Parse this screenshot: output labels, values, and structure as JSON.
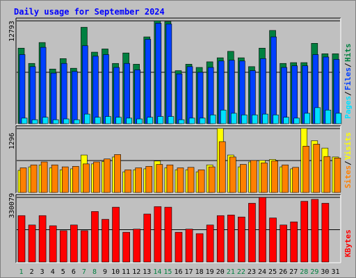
{
  "chart_title": "Daily usage for September 2024",
  "chart_data": [
    {
      "type": "bar",
      "panel": "hits-files-pages",
      "title": "Daily usage for September 2024",
      "categories": [
        "1",
        "2",
        "3",
        "4",
        "5",
        "6",
        "7",
        "8",
        "9",
        "10",
        "11",
        "12",
        "13",
        "14",
        "15",
        "16",
        "17",
        "18",
        "19",
        "20",
        "21",
        "22",
        "23",
        "24",
        "25",
        "26",
        "27",
        "28",
        "29",
        "30",
        "31"
      ],
      "ymax_label": "12793",
      "ylim": [
        0,
        12793
      ],
      "series": [
        {
          "name": "Hits",
          "color": "#008040",
          "values": [
            9400,
            7500,
            10100,
            6800,
            8100,
            6900,
            12000,
            8900,
            9300,
            7500,
            8800,
            7400,
            10800,
            12800,
            12700,
            6600,
            7400,
            7000,
            7700,
            8200,
            9000,
            8200,
            7100,
            9400,
            11600,
            7500,
            7600,
            7600,
            10000,
            8700,
            8700
          ]
        },
        {
          "name": "Files",
          "color": "#0040ff",
          "values": [
            8600,
            7100,
            9500,
            6300,
            7500,
            6500,
            9700,
            8400,
            8600,
            7000,
            7500,
            6700,
            10500,
            12500,
            12400,
            6200,
            7100,
            6400,
            7000,
            7800,
            7900,
            7800,
            6600,
            8100,
            10800,
            7000,
            7200,
            7200,
            8600,
            8300,
            8000
          ]
        },
        {
          "name": "Pages",
          "color": "#00e0ff",
          "values": [
            700,
            500,
            800,
            500,
            600,
            500,
            1200,
            800,
            900,
            800,
            700,
            600,
            800,
            900,
            900,
            500,
            700,
            700,
            1100,
            1700,
            1300,
            1100,
            1100,
            1200,
            1100,
            800,
            700,
            1300,
            2000,
            1700,
            1300
          ]
        }
      ],
      "axis_label": [
        "Pages",
        "Files",
        "Hits"
      ]
    },
    {
      "type": "bar",
      "panel": "visits-sites",
      "categories": [
        "1",
        "2",
        "3",
        "4",
        "5",
        "6",
        "7",
        "8",
        "9",
        "10",
        "11",
        "12",
        "13",
        "14",
        "15",
        "16",
        "17",
        "18",
        "19",
        "20",
        "21",
        "22",
        "23",
        "24",
        "25",
        "26",
        "27",
        "28",
        "29",
        "30",
        "31"
      ],
      "ymax_label": "1296",
      "ylim": [
        0,
        1296
      ],
      "series": [
        {
          "name": "Visits",
          "color": "#ffff00",
          "values": [
            450,
            520,
            560,
            500,
            460,
            480,
            760,
            580,
            630,
            720,
            420,
            460,
            480,
            640,
            500,
            460,
            460,
            420,
            560,
            1300,
            760,
            520,
            620,
            650,
            670,
            520,
            480,
            1300,
            1050,
            900,
            720
          ]
        },
        {
          "name": "Sites",
          "color": "#ff8000",
          "values": [
            500,
            560,
            620,
            560,
            520,
            530,
            580,
            620,
            680,
            770,
            460,
            500,
            530,
            570,
            560,
            500,
            510,
            460,
            520,
            1030,
            720,
            570,
            650,
            600,
            640,
            560,
            510,
            940,
            980,
            730,
            700
          ]
        }
      ],
      "axis_label": [
        "Sites",
        "Visits"
      ]
    },
    {
      "type": "bar",
      "panel": "kbytes",
      "categories": [
        "1",
        "2",
        "3",
        "4",
        "5",
        "6",
        "7",
        "8",
        "9",
        "10",
        "11",
        "12",
        "13",
        "14",
        "15",
        "16",
        "17",
        "18",
        "19",
        "20",
        "21",
        "22",
        "23",
        "24",
        "25",
        "26",
        "27",
        "28",
        "29",
        "30",
        "31"
      ],
      "ymax_label": "330079",
      "ylim": [
        0,
        330079
      ],
      "series": [
        {
          "name": "KBytes",
          "color": "#ff0000",
          "values": [
            237000,
            189000,
            237000,
            185000,
            160000,
            189000,
            160000,
            258000,
            218000,
            280000,
            152000,
            168000,
            245000,
            283000,
            280000,
            152000,
            168000,
            145000,
            189000,
            237000,
            240000,
            230000,
            300000,
            330000,
            225000,
            189000,
            205000,
            310000,
            320000,
            300000,
            0
          ]
        }
      ],
      "axis_label": [
        "KBytes"
      ]
    }
  ],
  "day_labels": [
    "1",
    "2",
    "3",
    "4",
    "5",
    "6",
    "7",
    "8",
    "9",
    "10",
    "11",
    "12",
    "13",
    "14",
    "15",
    "16",
    "17",
    "18",
    "19",
    "20",
    "21",
    "22",
    "23",
    "24",
    "25",
    "26",
    "27",
    "28",
    "29",
    "30",
    "31"
  ],
  "weekend_days": [
    1,
    7,
    8,
    14,
    15,
    21,
    22,
    28,
    29
  ],
  "colors": {
    "weekday_label": "#000000",
    "weekend_label": "#008040",
    "title": "#0000ff",
    "panel_bg": "#c0c0c0"
  }
}
